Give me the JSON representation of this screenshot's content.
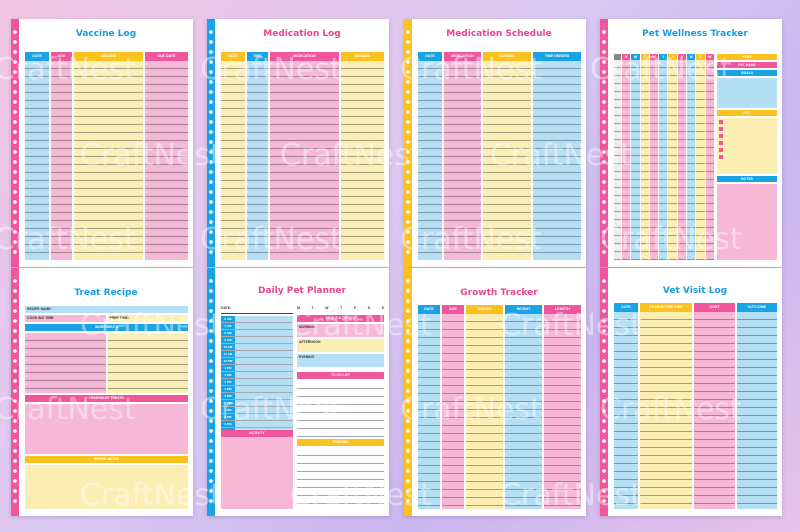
{
  "watermark": "CraftNest",
  "pages": {
    "vaccine_log": {
      "title": "Vaccine Log",
      "cols": [
        "DATE",
        "AGE",
        "VACCINE",
        "DUE DATE"
      ]
    },
    "medication_log": {
      "title": "Medication Log",
      "cols": [
        "DATE",
        "TIME",
        "MEDICATION",
        "DOSAGE"
      ]
    },
    "medication_schedule": {
      "title": "Medication Schedule",
      "cols": [
        "DATE",
        "MEDICATION",
        "DOSAGE",
        "TIME NEEDED"
      ]
    },
    "pet_wellness": {
      "title": "Pet Wellness Tracker",
      "days": [
        "S",
        "M",
        "T",
        "W",
        "T",
        "F",
        "S",
        "M",
        "T",
        "W"
      ],
      "side": [
        "YEAR",
        "PET NAME",
        "GOALS",
        "KEY",
        "NOTES"
      ]
    },
    "treat_recipe": {
      "title": "Treat Recipe",
      "recipe_name": "RECIPE NAME:",
      "cook_time": "COOK ING TIME:",
      "prep_time": "PREP TIME:",
      "ingredients": "INGREDIENTS",
      "homemade": "HOMEMADE TREATS",
      "notes": "RECIPE NOTES"
    },
    "daily_planner": {
      "title": "Daily Pet Planner",
      "date": "DATE:",
      "week": [
        "M",
        "T",
        "W",
        "T",
        "F",
        "S",
        "S"
      ],
      "meals": "MEALS & TREATS",
      "morning": "MORNING",
      "afternoon": "AFTERNOON",
      "evening": "EVENING",
      "todo": "TO DO LIST",
      "activity": "ACTIVITY",
      "training": "TRAINING",
      "times": [
        "6 AM",
        "7 AM",
        "8 AM",
        "9 AM",
        "10 AM",
        "11 AM",
        "12 PM",
        "1 PM",
        "2 PM",
        "3 PM",
        "4 PM",
        "5 PM",
        "6 PM",
        "7 PM",
        "8 PM",
        "9 PM",
        "10 PM"
      ]
    },
    "growth_tracker": {
      "title": "Growth Tracker",
      "cols": [
        "DATE",
        "AGE",
        "WEIGHT",
        "HEIGHT",
        "LENGTH"
      ]
    },
    "vet_visit": {
      "title": "Vet Visit Log",
      "cols": [
        "DATE",
        "REASON FOR VISIT",
        "COST",
        "OUTCOME"
      ]
    }
  }
}
